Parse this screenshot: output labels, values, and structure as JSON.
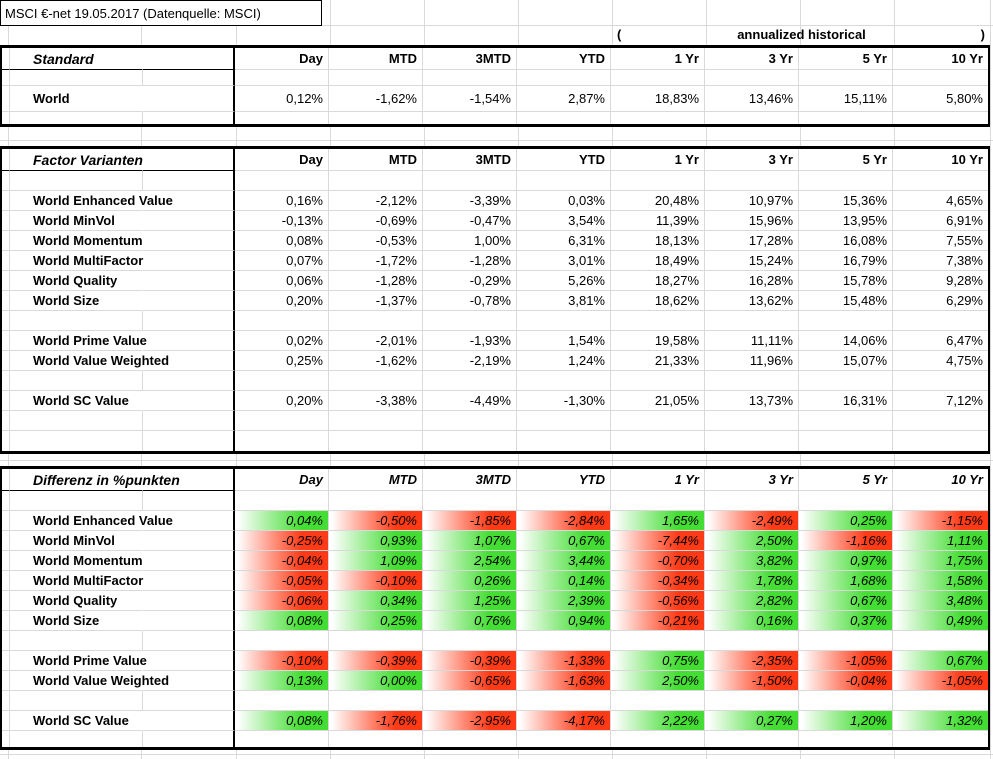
{
  "title": "MSCI €-net 19.05.2017 (Datenquelle: MSCI)",
  "annualized": {
    "open_paren": "(",
    "label": "annualized historical",
    "close_paren": ")"
  },
  "columns": [
    "Day",
    "MTD",
    "3MTD",
    "YTD",
    "1 Yr",
    "3 Yr",
    "5 Yr",
    "10 Yr"
  ],
  "colors": {
    "positive_fill": "#44dd33",
    "negative_fill": "#ff3a17"
  },
  "tables": [
    {
      "title": "Standard",
      "colored": false,
      "rows": [
        {
          "h": 16
        },
        {
          "h": 26,
          "label": "World",
          "values": [
            "0,12%",
            "-1,62%",
            "-1,54%",
            "2,87%",
            "18,83%",
            "13,46%",
            "15,11%",
            "5,80%"
          ]
        },
        {
          "h": 12
        }
      ]
    },
    {
      "title": "Factor Varianten",
      "colored": false,
      "rows": [
        {},
        {
          "label": "World Enhanced Value",
          "values": [
            "0,16%",
            "-2,12%",
            "-3,39%",
            "0,03%",
            "20,48%",
            "10,97%",
            "15,36%",
            "4,65%"
          ]
        },
        {
          "label": "World MinVol",
          "values": [
            "-0,13%",
            "-0,69%",
            "-0,47%",
            "3,54%",
            "11,39%",
            "15,96%",
            "13,95%",
            "6,91%"
          ]
        },
        {
          "label": "World Momentum",
          "values": [
            "0,08%",
            "-0,53%",
            "1,00%",
            "6,31%",
            "18,13%",
            "17,28%",
            "16,08%",
            "7,55%"
          ]
        },
        {
          "label": "World MultiFactor",
          "values": [
            "0,07%",
            "-1,72%",
            "-1,28%",
            "3,01%",
            "18,49%",
            "15,24%",
            "16,79%",
            "7,38%"
          ]
        },
        {
          "label": "World Quality",
          "values": [
            "0,06%",
            "-1,28%",
            "-0,29%",
            "5,26%",
            "18,27%",
            "16,28%",
            "15,78%",
            "9,28%"
          ]
        },
        {
          "label": "World Size",
          "values": [
            "0,20%",
            "-1,37%",
            "-0,78%",
            "3,81%",
            "18,62%",
            "13,62%",
            "15,48%",
            "6,29%"
          ]
        },
        {},
        {
          "label": "World Prime Value",
          "values": [
            "0,02%",
            "-2,01%",
            "-1,93%",
            "1,54%",
            "19,58%",
            "11,11%",
            "14,06%",
            "6,47%"
          ]
        },
        {
          "label": "World Value Weighted",
          "values": [
            "0,25%",
            "-1,62%",
            "-2,19%",
            "1,24%",
            "21,33%",
            "11,96%",
            "15,07%",
            "4,75%"
          ]
        },
        {},
        {
          "label": "World SC Value",
          "values": [
            "0,20%",
            "-3,38%",
            "-4,49%",
            "-1,30%",
            "21,05%",
            "13,73%",
            "16,31%",
            "7,12%"
          ]
        },
        {},
        {}
      ]
    },
    {
      "title": "Differenz in %punkten",
      "colored": true,
      "rows": [
        {},
        {
          "label": "World Enhanced Value",
          "values": [
            "0,04%",
            "-0,50%",
            "-1,85%",
            "-2,84%",
            "1,65%",
            "-2,49%",
            "0,25%",
            "-1,15%"
          ]
        },
        {
          "label": "World MinVol",
          "values": [
            "-0,25%",
            "0,93%",
            "1,07%",
            "0,67%",
            "-7,44%",
            "2,50%",
            "-1,16%",
            "1,11%"
          ]
        },
        {
          "label": "World Momentum",
          "values": [
            "-0,04%",
            "1,09%",
            "2,54%",
            "3,44%",
            "-0,70%",
            "3,82%",
            "0,97%",
            "1,75%"
          ]
        },
        {
          "label": "World MultiFactor",
          "values": [
            "-0,05%",
            "-0,10%",
            "0,26%",
            "0,14%",
            "-0,34%",
            "1,78%",
            "1,68%",
            "1,58%"
          ]
        },
        {
          "label": "World Quality",
          "values": [
            "-0,06%",
            "0,34%",
            "1,25%",
            "2,39%",
            "-0,56%",
            "2,82%",
            "0,67%",
            "3,48%"
          ]
        },
        {
          "label": "World Size",
          "values": [
            "0,08%",
            "0,25%",
            "0,76%",
            "0,94%",
            "-0,21%",
            "0,16%",
            "0,37%",
            "0,49%"
          ]
        },
        {},
        {
          "label": "World Prime Value",
          "values": [
            "-0,10%",
            "-0,39%",
            "-0,39%",
            "-1,33%",
            "0,75%",
            "-2,35%",
            "-1,05%",
            "0,67%"
          ]
        },
        {
          "label": "World Value Weighted",
          "values": [
            "0,13%",
            "0,00%",
            "-0,65%",
            "-1,63%",
            "2,50%",
            "-1,50%",
            "-0,04%",
            "-1,05%"
          ]
        },
        {},
        {
          "label": "World SC Value",
          "values": [
            "0,08%",
            "-1,76%",
            "-2,95%",
            "-4,17%",
            "2,22%",
            "0,27%",
            "1,20%",
            "1,32%"
          ]
        },
        {
          "h": 16
        }
      ]
    }
  ]
}
